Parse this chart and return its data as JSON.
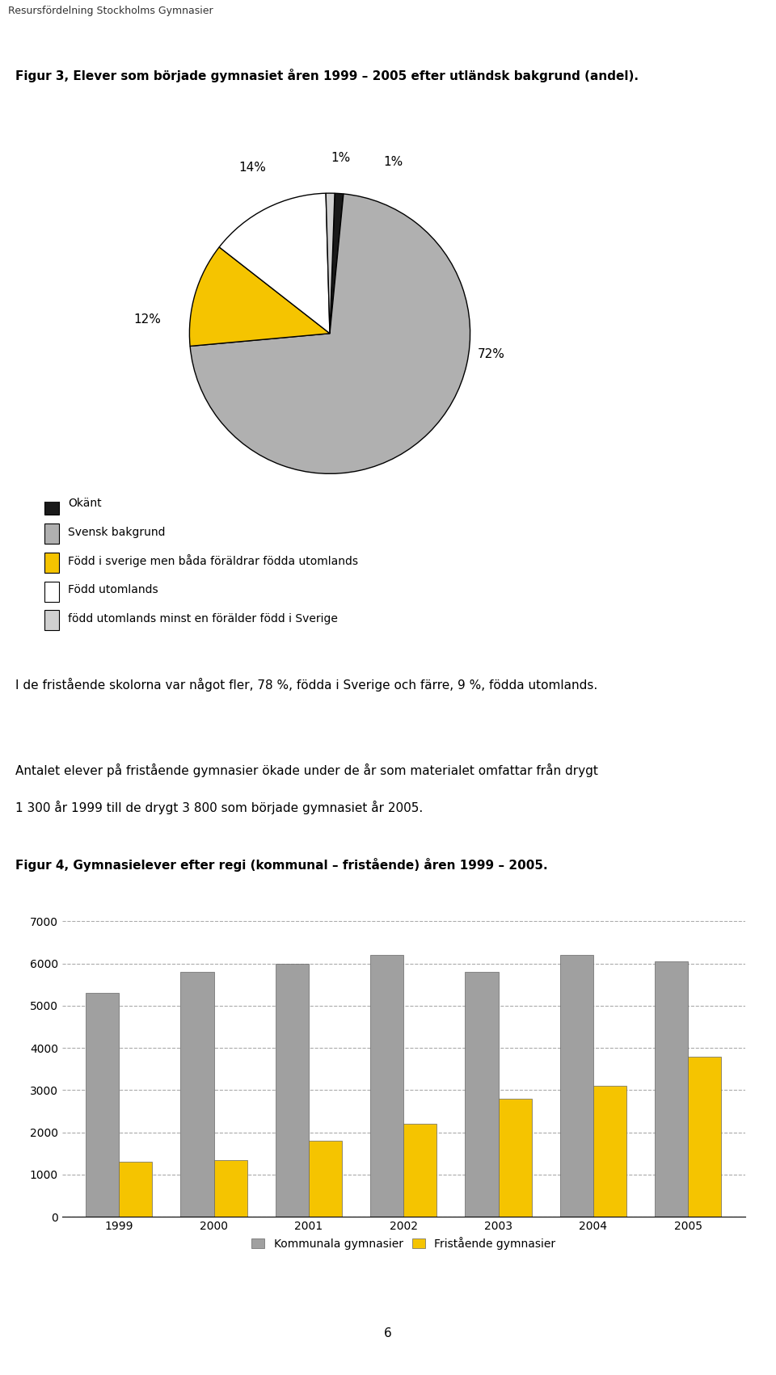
{
  "header_text": "Resursfördelning Stockholms Gymnasier",
  "fig3_title": "Figur 3, Elever som började gymnasiet åren 1999 – 2005 efter utländsk bakgrund (andel).",
  "pie_values": [
    1,
    72,
    12,
    14,
    1
  ],
  "pie_labels": [
    "1%",
    "72%",
    "12%",
    "14%",
    "1%"
  ],
  "pie_colors": [
    "#1a1a1a",
    "#b0b0b0",
    "#f5c400",
    "#ffffff",
    "#d0d0d0"
  ],
  "pie_edge_color": "#000000",
  "pie_startangle": 88,
  "legend_labels": [
    "Okänt",
    "Svensk bakgrund",
    "Född i sverige men båda föräldrar födda utomlands",
    "Född utomlands",
    "född utomlands minst en förälder född i Sverige"
  ],
  "legend_colors": [
    "#1a1a1a",
    "#b0b0b0",
    "#f5c400",
    "#ffffff",
    "#d0d0d0"
  ],
  "text1": "I de fristående skolorna var något fler, 78 %, födda i Sverige och färre, 9 %, födda utomlands.",
  "text2_line1": "Antalet elever på fristående gymnasier ökade under de år som materialet omfattar från drygt",
  "text2_line2": "1 300 år 1999 till de drygt 3 800 som började gymnasiet år 2005.",
  "fig4_title": "Figur 4, Gymnasielever efter regi (kommunal – fristående) åren 1999 – 2005.",
  "bar_years": [
    "1999",
    "2000",
    "2001",
    "2002",
    "2003",
    "2004",
    "2005"
  ],
  "bar_kommunal": [
    5300,
    5800,
    6000,
    6200,
    5800,
    6200,
    6050
  ],
  "bar_fristående": [
    1300,
    1350,
    1800,
    2200,
    2800,
    3100,
    3800
  ],
  "bar_color_kommunal": "#a0a0a0",
  "bar_color_fristående": "#f5c400",
  "bar_ylim": [
    0,
    7000
  ],
  "bar_yticks": [
    0,
    1000,
    2000,
    3000,
    4000,
    5000,
    6000,
    7000
  ],
  "legend_bar_labels": [
    "Kommunala gymnasier",
    "Fristående gymnasier"
  ],
  "page_number": "6",
  "background_color": "#ffffff",
  "header_line_color": "#d4c98a"
}
